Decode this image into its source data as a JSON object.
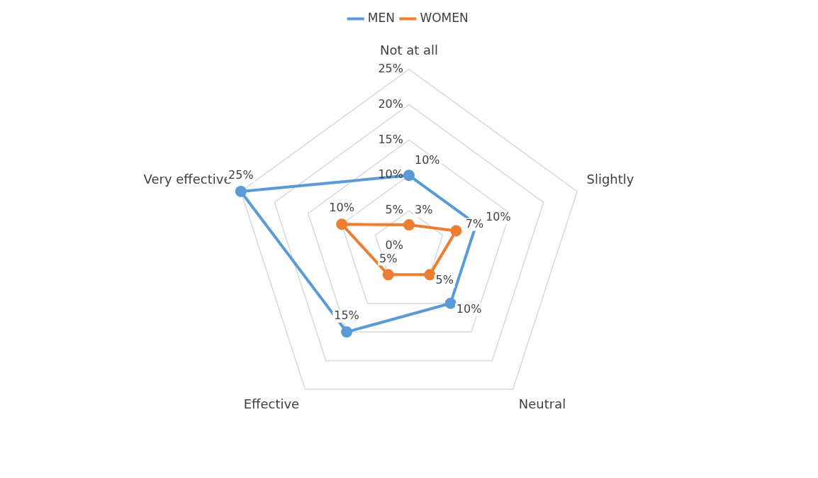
{
  "chart_data": {
    "type": "radar",
    "categories": [
      "Not at all",
      "Slightly",
      "Neutral",
      "Effective",
      "Very effective"
    ],
    "series": [
      {
        "name": "MEN",
        "color": "#5b9bd5",
        "values": [
          10,
          10,
          10,
          15,
          25
        ],
        "value_labels": [
          "10%",
          "10%",
          "10%",
          "15%",
          "25%"
        ]
      },
      {
        "name": "WOMEN",
        "color": "#ed7d31",
        "values": [
          3,
          7,
          5,
          5,
          10
        ],
        "value_labels": [
          "3%",
          "7%",
          "5%",
          "5%",
          "10%"
        ]
      }
    ],
    "ylim": [
      0,
      25
    ],
    "yticks": [
      {
        "value": 0,
        "label": "0%"
      },
      {
        "value": 5,
        "label": "5%"
      },
      {
        "value": 10,
        "label": "10%"
      },
      {
        "value": 15,
        "label": "15%"
      },
      {
        "value": 20,
        "label": "20%"
      },
      {
        "value": 25,
        "label": "25%"
      }
    ],
    "grid": true,
    "legend": "top",
    "marker": "circle",
    "line_style": "solid"
  }
}
